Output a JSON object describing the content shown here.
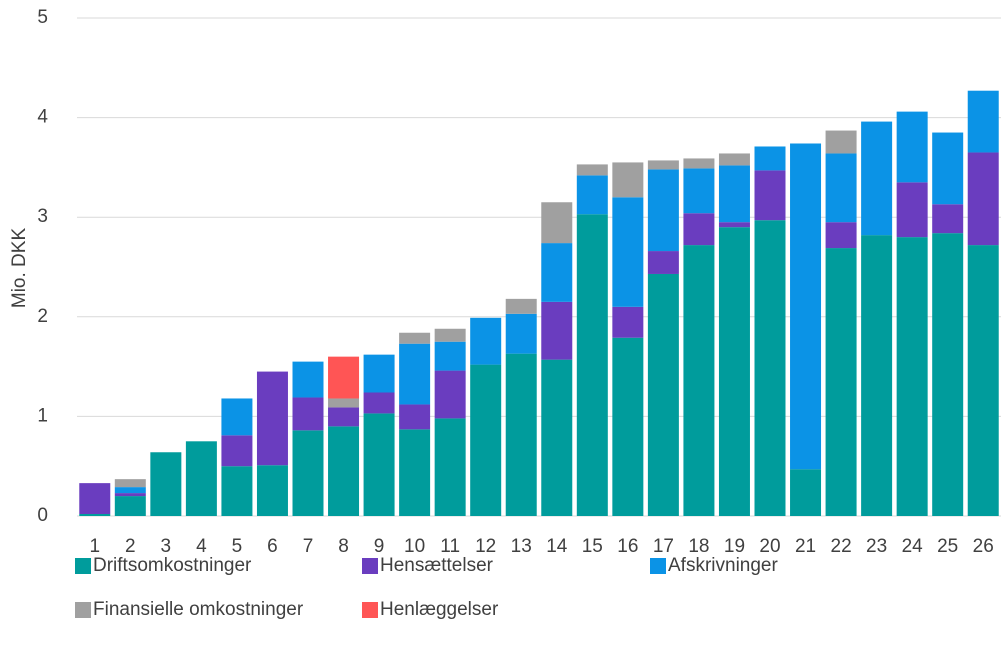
{
  "chart_data": {
    "type": "stacked_bar",
    "y_label": "Mio. DKK",
    "categories": [
      "1",
      "2",
      "3",
      "4",
      "5",
      "6",
      "7",
      "8",
      "9",
      "10",
      "11",
      "12",
      "13",
      "14",
      "15",
      "16",
      "17",
      "18",
      "19",
      "20",
      "21",
      "22",
      "23",
      "24",
      "25",
      "26"
    ],
    "series": [
      {
        "name": "Driftsomkostninger",
        "color": "#009c9c",
        "values": [
          0.02,
          0.2,
          0.64,
          0.75,
          0.5,
          0.51,
          0.86,
          0.9,
          1.03,
          0.87,
          0.98,
          1.52,
          1.63,
          1.57,
          3.03,
          1.79,
          2.43,
          2.72,
          2.9,
          2.97,
          0.47,
          2.69,
          2.82,
          2.8,
          2.84,
          2.72
        ]
      },
      {
        "name": "Hensættelser",
        "color": "#6a3dbf",
        "values": [
          0.31,
          0.03,
          0,
          0,
          0.31,
          0.94,
          0.33,
          0.19,
          0.21,
          0.25,
          0.48,
          0,
          0,
          0.58,
          0,
          0.31,
          0.23,
          0.32,
          0.05,
          0.5,
          0,
          0.26,
          0,
          0.55,
          0.29,
          0.93
        ]
      },
      {
        "name": "Afskrivninger",
        "color": "#0b93e6",
        "values": [
          0,
          0.06,
          0,
          0,
          0.37,
          0,
          0.36,
          0,
          0.38,
          0.61,
          0.29,
          0.47,
          0.4,
          0.59,
          0.39,
          1.1,
          0.82,
          0.45,
          0.57,
          0.24,
          3.27,
          0.69,
          1.14,
          0.71,
          0.72,
          0.62
        ]
      },
      {
        "name": "Finansielle omkostninger",
        "color": "#a0a0a0",
        "values": [
          0,
          0.08,
          0,
          0,
          0,
          0,
          0,
          0.09,
          0,
          0.11,
          0.13,
          0,
          0.15,
          0.41,
          0.11,
          0.35,
          0.09,
          0.1,
          0.12,
          0,
          0,
          0.23,
          0,
          0,
          0,
          0
        ]
      },
      {
        "name": "Henlæggelser",
        "color": "#ff5555",
        "values": [
          0,
          0,
          0,
          0,
          0,
          0,
          0,
          0.42,
          0,
          0,
          0,
          0,
          0,
          0,
          0,
          0,
          0,
          0,
          0,
          0,
          0,
          0,
          0,
          0,
          0,
          0
        ]
      }
    ],
    "ylim": [
      0,
      5
    ],
    "yticks": [
      0,
      1,
      2,
      3,
      4,
      5
    ],
    "grid": true,
    "legend": "bottom"
  }
}
